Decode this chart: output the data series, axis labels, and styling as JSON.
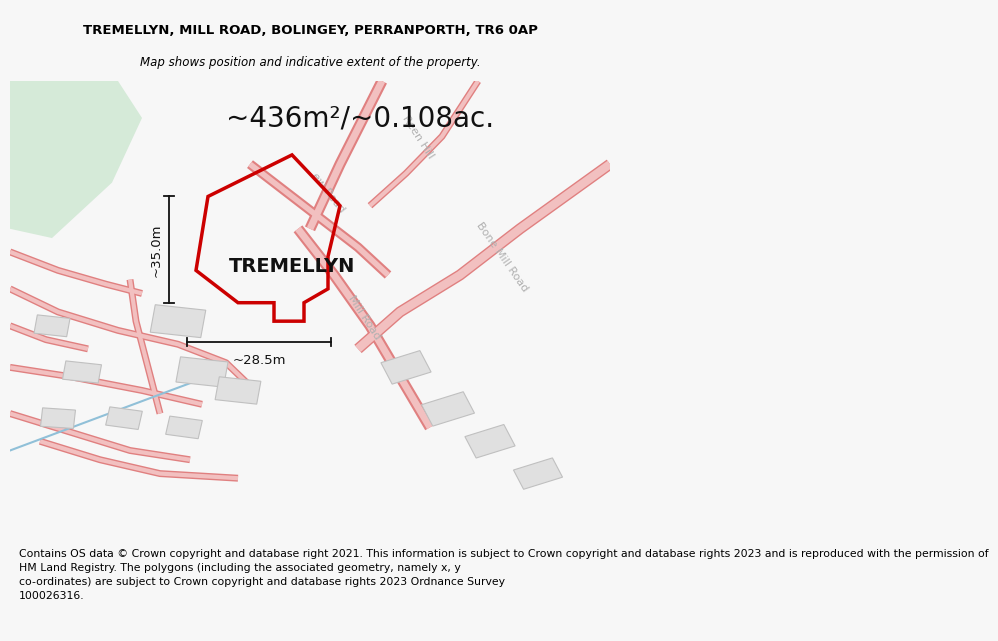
{
  "title_line1": "TREMELLYN, MILL ROAD, BOLINGEY, PERRANPORTH, TR6 0AP",
  "title_line2": "Map shows position and indicative extent of the property.",
  "area_label": "~436m²/~0.108ac.",
  "property_label": "TREMELLYN",
  "dim_vertical": "~35.0m",
  "dim_horizontal": "~28.5m",
  "footer_text": "Contains OS data © Crown copyright and database right 2021. This information is subject to Crown copyright and database rights 2023 and is reproduced with the permission of\nHM Land Registry. The polygons (including the associated geometry, namely x, y\nco-ordinates) are subject to Crown copyright and database rights 2023 Ordnance Survey\n100026316.",
  "bg_color": "#f7f7f7",
  "map_bg": "#ffffff",
  "road_color": "#f2c0c0",
  "road_edge_color": "#e08080",
  "plot_outline_color": "#cc0000",
  "building_color": "#e0e0e0",
  "building_outline": "#c0c0c0",
  "green_area_color": "#d5ead8",
  "road_label_color": "#b0b0b0",
  "dim_color": "#111111",
  "title_fontsize": 9.5,
  "footer_fontsize": 7.8,
  "area_fontsize": 20,
  "property_fontsize": 14,
  "dim_fontsize": 9.5,
  "road_lw": 6,
  "road_edge_lw": 8,
  "thin_road_lw": 3,
  "thin_road_edge_lw": 5
}
